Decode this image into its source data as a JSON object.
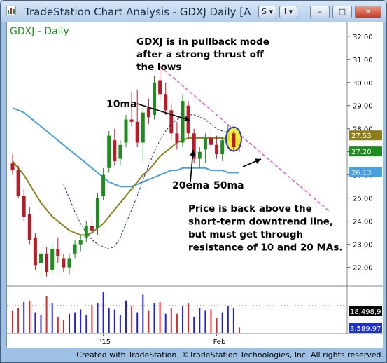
{
  "window": {
    "title": "TradeStation Chart Analysis - GDXJ Daily [A",
    "buttons": {
      "s": "S",
      "i": "I"
    },
    "footer": "Created with TradeStation. ©TradeStation Technologies, Inc. All rights reserved."
  },
  "colors": {
    "up": "#1f8c1f",
    "down": "#b71d28",
    "ma10": "#1e2a90",
    "ma20": "#8c7e1a",
    "ma50": "#4aa0de",
    "trendline": "#e855e0",
    "last_price_bg": "#1f8c1f",
    "ma50_label_bg": "#4aa0de",
    "highlight_fill": "#f2ee24",
    "highlight_stroke": "#2b37c8"
  },
  "icons": {
    "app": "chart-app-icon",
    "minimize": "minimize-icon",
    "maximize": "maximize-icon",
    "close": "close-icon",
    "dropdown": "chevron-down-icon"
  },
  "chart_data": {
    "type": "candlestick",
    "symbol_label": "GDXJ - Daily",
    "ylim": [
      21.2,
      32.6
    ],
    "y_ticks": [
      "32.00",
      "31.00",
      "30.00",
      "29.00",
      "28.00",
      "27.00",
      "26.00",
      "25.00",
      "24.00",
      "23.00",
      "22.00"
    ],
    "price_labels": {
      "ma20": "27.53",
      "last": "27.20",
      "ma50": "26.13"
    },
    "x_labels": [
      {
        "text": "'15",
        "index": 16
      },
      {
        "text": "Feb",
        "index": 36
      }
    ],
    "candles": [
      {
        "o": 26.5,
        "h": 26.9,
        "l": 26.0,
        "c": 26.2
      },
      {
        "o": 26.2,
        "h": 26.4,
        "l": 25.0,
        "c": 25.1
      },
      {
        "o": 25.1,
        "h": 25.4,
        "l": 24.0,
        "c": 24.2
      },
      {
        "o": 24.3,
        "h": 24.6,
        "l": 23.0,
        "c": 23.2
      },
      {
        "o": 23.3,
        "h": 23.5,
        "l": 21.9,
        "c": 22.1
      },
      {
        "o": 22.2,
        "h": 22.8,
        "l": 21.5,
        "c": 22.6
      },
      {
        "o": 22.6,
        "h": 22.9,
        "l": 21.6,
        "c": 21.8
      },
      {
        "o": 21.9,
        "h": 23.0,
        "l": 21.7,
        "c": 22.8
      },
      {
        "o": 22.8,
        "h": 23.3,
        "l": 22.2,
        "c": 22.5
      },
      {
        "o": 22.4,
        "h": 22.6,
        "l": 21.8,
        "c": 22.0
      },
      {
        "o": 22.0,
        "h": 22.6,
        "l": 21.7,
        "c": 22.4
      },
      {
        "o": 22.6,
        "h": 23.2,
        "l": 22.4,
        "c": 23.0
      },
      {
        "o": 23.0,
        "h": 23.4,
        "l": 22.7,
        "c": 23.2
      },
      {
        "o": 23.3,
        "h": 24.0,
        "l": 23.1,
        "c": 23.8
      },
      {
        "o": 23.8,
        "h": 24.2,
        "l": 23.5,
        "c": 23.6
      },
      {
        "o": 23.7,
        "h": 25.2,
        "l": 23.4,
        "c": 25.0
      },
      {
        "o": 25.1,
        "h": 26.3,
        "l": 24.9,
        "c": 26.0
      },
      {
        "o": 26.3,
        "h": 27.9,
        "l": 26.1,
        "c": 27.7
      },
      {
        "o": 27.5,
        "h": 28.0,
        "l": 26.4,
        "c": 26.6
      },
      {
        "o": 26.7,
        "h": 27.5,
        "l": 26.4,
        "c": 27.3
      },
      {
        "o": 27.4,
        "h": 28.6,
        "l": 27.2,
        "c": 28.4
      },
      {
        "o": 28.4,
        "h": 29.6,
        "l": 28.1,
        "c": 28.3
      },
      {
        "o": 28.3,
        "h": 29.7,
        "l": 27.2,
        "c": 27.4
      },
      {
        "o": 27.4,
        "h": 28.9,
        "l": 26.6,
        "c": 28.7
      },
      {
        "o": 28.9,
        "h": 29.3,
        "l": 28.2,
        "c": 28.5
      },
      {
        "o": 28.6,
        "h": 30.3,
        "l": 28.4,
        "c": 30.0
      },
      {
        "o": 30.1,
        "h": 30.8,
        "l": 29.2,
        "c": 29.5
      },
      {
        "o": 29.5,
        "h": 30.0,
        "l": 28.6,
        "c": 28.8
      },
      {
        "o": 28.8,
        "h": 29.1,
        "l": 27.5,
        "c": 27.8
      },
      {
        "o": 27.8,
        "h": 28.3,
        "l": 27.1,
        "c": 27.4
      },
      {
        "o": 27.4,
        "h": 29.5,
        "l": 27.2,
        "c": 29.2
      },
      {
        "o": 29.0,
        "h": 29.2,
        "l": 27.6,
        "c": 27.8
      },
      {
        "o": 27.8,
        "h": 28.0,
        "l": 26.5,
        "c": 26.7
      },
      {
        "o": 26.7,
        "h": 27.2,
        "l": 26.3,
        "c": 27.0
      },
      {
        "o": 27.1,
        "h": 27.8,
        "l": 26.5,
        "c": 27.6
      },
      {
        "o": 27.6,
        "h": 28.0,
        "l": 27.1,
        "c": 27.3
      },
      {
        "o": 27.3,
        "h": 27.7,
        "l": 26.7,
        "c": 26.9
      },
      {
        "o": 26.9,
        "h": 27.6,
        "l": 26.6,
        "c": 27.5
      },
      {
        "o": 27.5,
        "h": 28.2,
        "l": 27.3,
        "c": 27.9
      },
      {
        "o": 27.8,
        "h": 27.9,
        "l": 27.0,
        "c": 27.2
      },
      {
        "o": 27.4,
        "h": 27.6,
        "l": 27.0,
        "c": 27.2
      }
    ],
    "ma10": [
      null,
      null,
      null,
      null,
      null,
      null,
      null,
      null,
      null,
      25.6,
      25.0,
      24.4,
      23.9,
      23.5,
      23.2,
      23.0,
      22.9,
      22.8,
      22.9,
      23.3,
      23.9,
      24.5,
      25.1,
      25.8,
      26.4,
      27.0,
      27.5,
      27.9,
      28.2,
      28.4,
      28.5,
      28.6,
      28.6,
      28.5,
      28.4,
      28.2,
      28.0,
      27.9,
      27.8,
      27.6,
      27.5
    ],
    "ma20": [
      26.6,
      26.3,
      26.0,
      25.6,
      25.2,
      24.8,
      24.5,
      24.2,
      24.0,
      23.8,
      23.6,
      23.5,
      23.4,
      23.4,
      23.5,
      23.7,
      23.9,
      24.2,
      24.5,
      24.8,
      25.1,
      25.4,
      25.7,
      26.0,
      26.2,
      26.5,
      26.8,
      27.0,
      27.2,
      27.4,
      27.5,
      27.6,
      27.6,
      27.6,
      27.6,
      27.6,
      27.6,
      27.6,
      27.5,
      27.5,
      27.5
    ],
    "ma50": [
      28.9,
      28.8,
      28.7,
      28.5,
      28.3,
      28.1,
      27.9,
      27.7,
      27.5,
      27.3,
      27.1,
      26.9,
      26.7,
      26.5,
      26.3,
      26.1,
      25.9,
      25.7,
      25.6,
      25.5,
      25.5,
      25.5,
      25.6,
      25.7,
      25.8,
      25.9,
      26.0,
      26.1,
      26.2,
      26.2,
      26.3,
      26.3,
      26.3,
      26.3,
      26.3,
      26.2,
      26.2,
      26.2,
      26.1,
      26.1,
      26.1
    ],
    "trendline": {
      "start": {
        "index": 26,
        "price": 30.7
      },
      "end": {
        "index": 56,
        "price": 24.4
      }
    },
    "highlight": {
      "index": 39,
      "price": 27.55
    },
    "volume": {
      "labels": {
        "top": "18,498,9",
        "bottom": "3,589,97"
      },
      "max": 30000000,
      "avg": 18498900,
      "values": [
        15000000.0,
        17000000.0,
        21000000.0,
        22000000.0,
        14000000.0,
        12000000.0,
        25000000.0,
        20000000.0,
        11000000.0,
        9000000.0,
        13000000.0,
        14000000.0,
        16000000.0,
        12000000.0,
        19000000.0,
        20000000.0,
        28000000.0,
        17000000.0,
        16000000.0,
        12000000.0,
        22000000.0,
        18000000.0,
        14000000.0,
        26000000.0,
        15000000.0,
        20000000.0,
        21000000.0,
        13000000.0,
        17000000.0,
        13000000.0,
        18000000.0,
        20000000.0,
        11000000.0,
        17000000.0,
        15000000.0,
        16000000.0,
        10000000.0,
        14000000.0,
        18000000.0,
        17000000.0,
        3600000.0
      ]
    },
    "annotations": [
      {
        "name": "annotation-pullback",
        "lines": [
          "GDXJ is in pullback mode",
          "after a strong thrust off",
          "the lows"
        ]
      },
      {
        "name": "annotation-10ma",
        "lines": [
          "10ma"
        ]
      },
      {
        "name": "annotation-20ema",
        "lines": [
          "20ema"
        ]
      },
      {
        "name": "annotation-50ma",
        "lines": [
          "50ma"
        ]
      },
      {
        "name": "annotation-price",
        "lines": [
          "Price is back above the",
          "short-term downtrend line,",
          "but must get through",
          "resistance of 10 and 20 MAs."
        ]
      }
    ]
  }
}
